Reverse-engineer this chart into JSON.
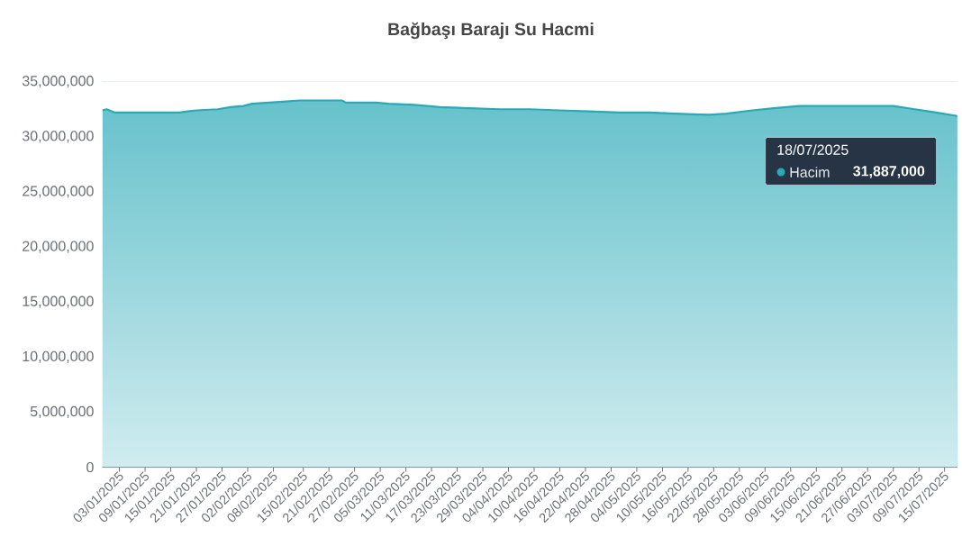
{
  "chart_data": {
    "type": "area",
    "title": "Bağbaşı Barajı Su Hacmi",
    "x": [
      "2024-12-30",
      "2024-12-31",
      "2025-01-02",
      "2025-01-07",
      "2025-01-17",
      "2025-01-19",
      "2025-01-21",
      "2025-01-26",
      "2025-01-29",
      "2025-02-01",
      "2025-02-03",
      "2025-02-07",
      "2025-02-11",
      "2025-02-14",
      "2025-02-24",
      "2025-02-25",
      "2025-03-04",
      "2025-03-07",
      "2025-03-13",
      "2025-03-16",
      "2025-03-19",
      "2025-03-26",
      "2025-04-02",
      "2025-04-09",
      "2025-04-16",
      "2025-04-23",
      "2025-04-30",
      "2025-05-07",
      "2025-05-13",
      "2025-05-21",
      "2025-05-25",
      "2025-05-31",
      "2025-06-05",
      "2025-06-11",
      "2025-06-16",
      "2025-06-24",
      "2025-06-30",
      "2025-07-03",
      "2025-07-08",
      "2025-07-13",
      "2025-07-18"
    ],
    "series": [
      {
        "name": "Hacim",
        "color": "#2aa9b7",
        "values": [
          32400000,
          32500000,
          32200000,
          32200000,
          32200000,
          32300000,
          32400000,
          32500000,
          32700000,
          32800000,
          33000000,
          33100000,
          33200000,
          33300000,
          33300000,
          33100000,
          33100000,
          33000000,
          32900000,
          32800000,
          32700000,
          32600000,
          32500000,
          32500000,
          32400000,
          32300000,
          32200000,
          32200000,
          32100000,
          32000000,
          32100000,
          32400000,
          32600000,
          32800000,
          32800000,
          32800000,
          32800000,
          32800000,
          32500000,
          32200000,
          31887000
        ]
      }
    ],
    "xlim": [
      "2024-12-30",
      "2025-07-18"
    ],
    "xticks": [
      {
        "value": "2025-01-03",
        "label": "03/01/2025"
      },
      {
        "value": "2025-01-09",
        "label": "09/01/2025"
      },
      {
        "value": "2025-01-15",
        "label": "15/01/2025"
      },
      {
        "value": "2025-01-21",
        "label": "21/01/2025"
      },
      {
        "value": "2025-01-27",
        "label": "27/01/2025"
      },
      {
        "value": "2025-02-02",
        "label": "02/02/2025"
      },
      {
        "value": "2025-02-08",
        "label": "08/02/2025"
      },
      {
        "value": "2025-02-15",
        "label": "15/02/2025"
      },
      {
        "value": "2025-02-21",
        "label": "21/02/2025"
      },
      {
        "value": "2025-02-27",
        "label": "27/02/2025"
      },
      {
        "value": "2025-03-05",
        "label": "05/03/2025"
      },
      {
        "value": "2025-03-11",
        "label": "11/03/2025"
      },
      {
        "value": "2025-03-17",
        "label": "17/03/2025"
      },
      {
        "value": "2025-03-23",
        "label": "23/03/2025"
      },
      {
        "value": "2025-03-29",
        "label": "29/03/2025"
      },
      {
        "value": "2025-04-04",
        "label": "04/04/2025"
      },
      {
        "value": "2025-04-10",
        "label": "10/04/2025"
      },
      {
        "value": "2025-04-16",
        "label": "16/04/2025"
      },
      {
        "value": "2025-04-22",
        "label": "22/04/2025"
      },
      {
        "value": "2025-04-28",
        "label": "28/04/2025"
      },
      {
        "value": "2025-05-04",
        "label": "04/05/2025"
      },
      {
        "value": "2025-05-10",
        "label": "10/05/2025"
      },
      {
        "value": "2025-05-16",
        "label": "16/05/2025"
      },
      {
        "value": "2025-05-22",
        "label": "22/05/2025"
      },
      {
        "value": "2025-05-28",
        "label": "28/05/2025"
      },
      {
        "value": "2025-06-03",
        "label": "03/06/2025"
      },
      {
        "value": "2025-06-09",
        "label": "09/06/2025"
      },
      {
        "value": "2025-06-15",
        "label": "15/06/2025"
      },
      {
        "value": "2025-06-21",
        "label": "21/06/2025"
      },
      {
        "value": "2025-06-27",
        "label": "27/06/2025"
      },
      {
        "value": "2025-07-03",
        "label": "03/07/2025"
      },
      {
        "value": "2025-07-09",
        "label": "09/07/2025"
      },
      {
        "value": "2025-07-15",
        "label": "15/07/2025"
      }
    ],
    "ylim": [
      0,
      35000000
    ],
    "yticks": [
      0,
      {
        "value": 5000000,
        "label": "5,000,000"
      },
      {
        "value": 10000000,
        "label": "10,000,000"
      },
      {
        "value": 15000000,
        "label": "15,000,000"
      },
      {
        "value": 20000000,
        "label": "20,000,000"
      },
      {
        "value": 25000000,
        "label": "25,000,000"
      },
      {
        "value": 30000000,
        "label": "30,000,000"
      },
      {
        "value": 35000000,
        "label": "35,000,000"
      }
    ],
    "grid": "y",
    "annotations": [
      "18/07/2025",
      "31,887,000"
    ]
  }
}
